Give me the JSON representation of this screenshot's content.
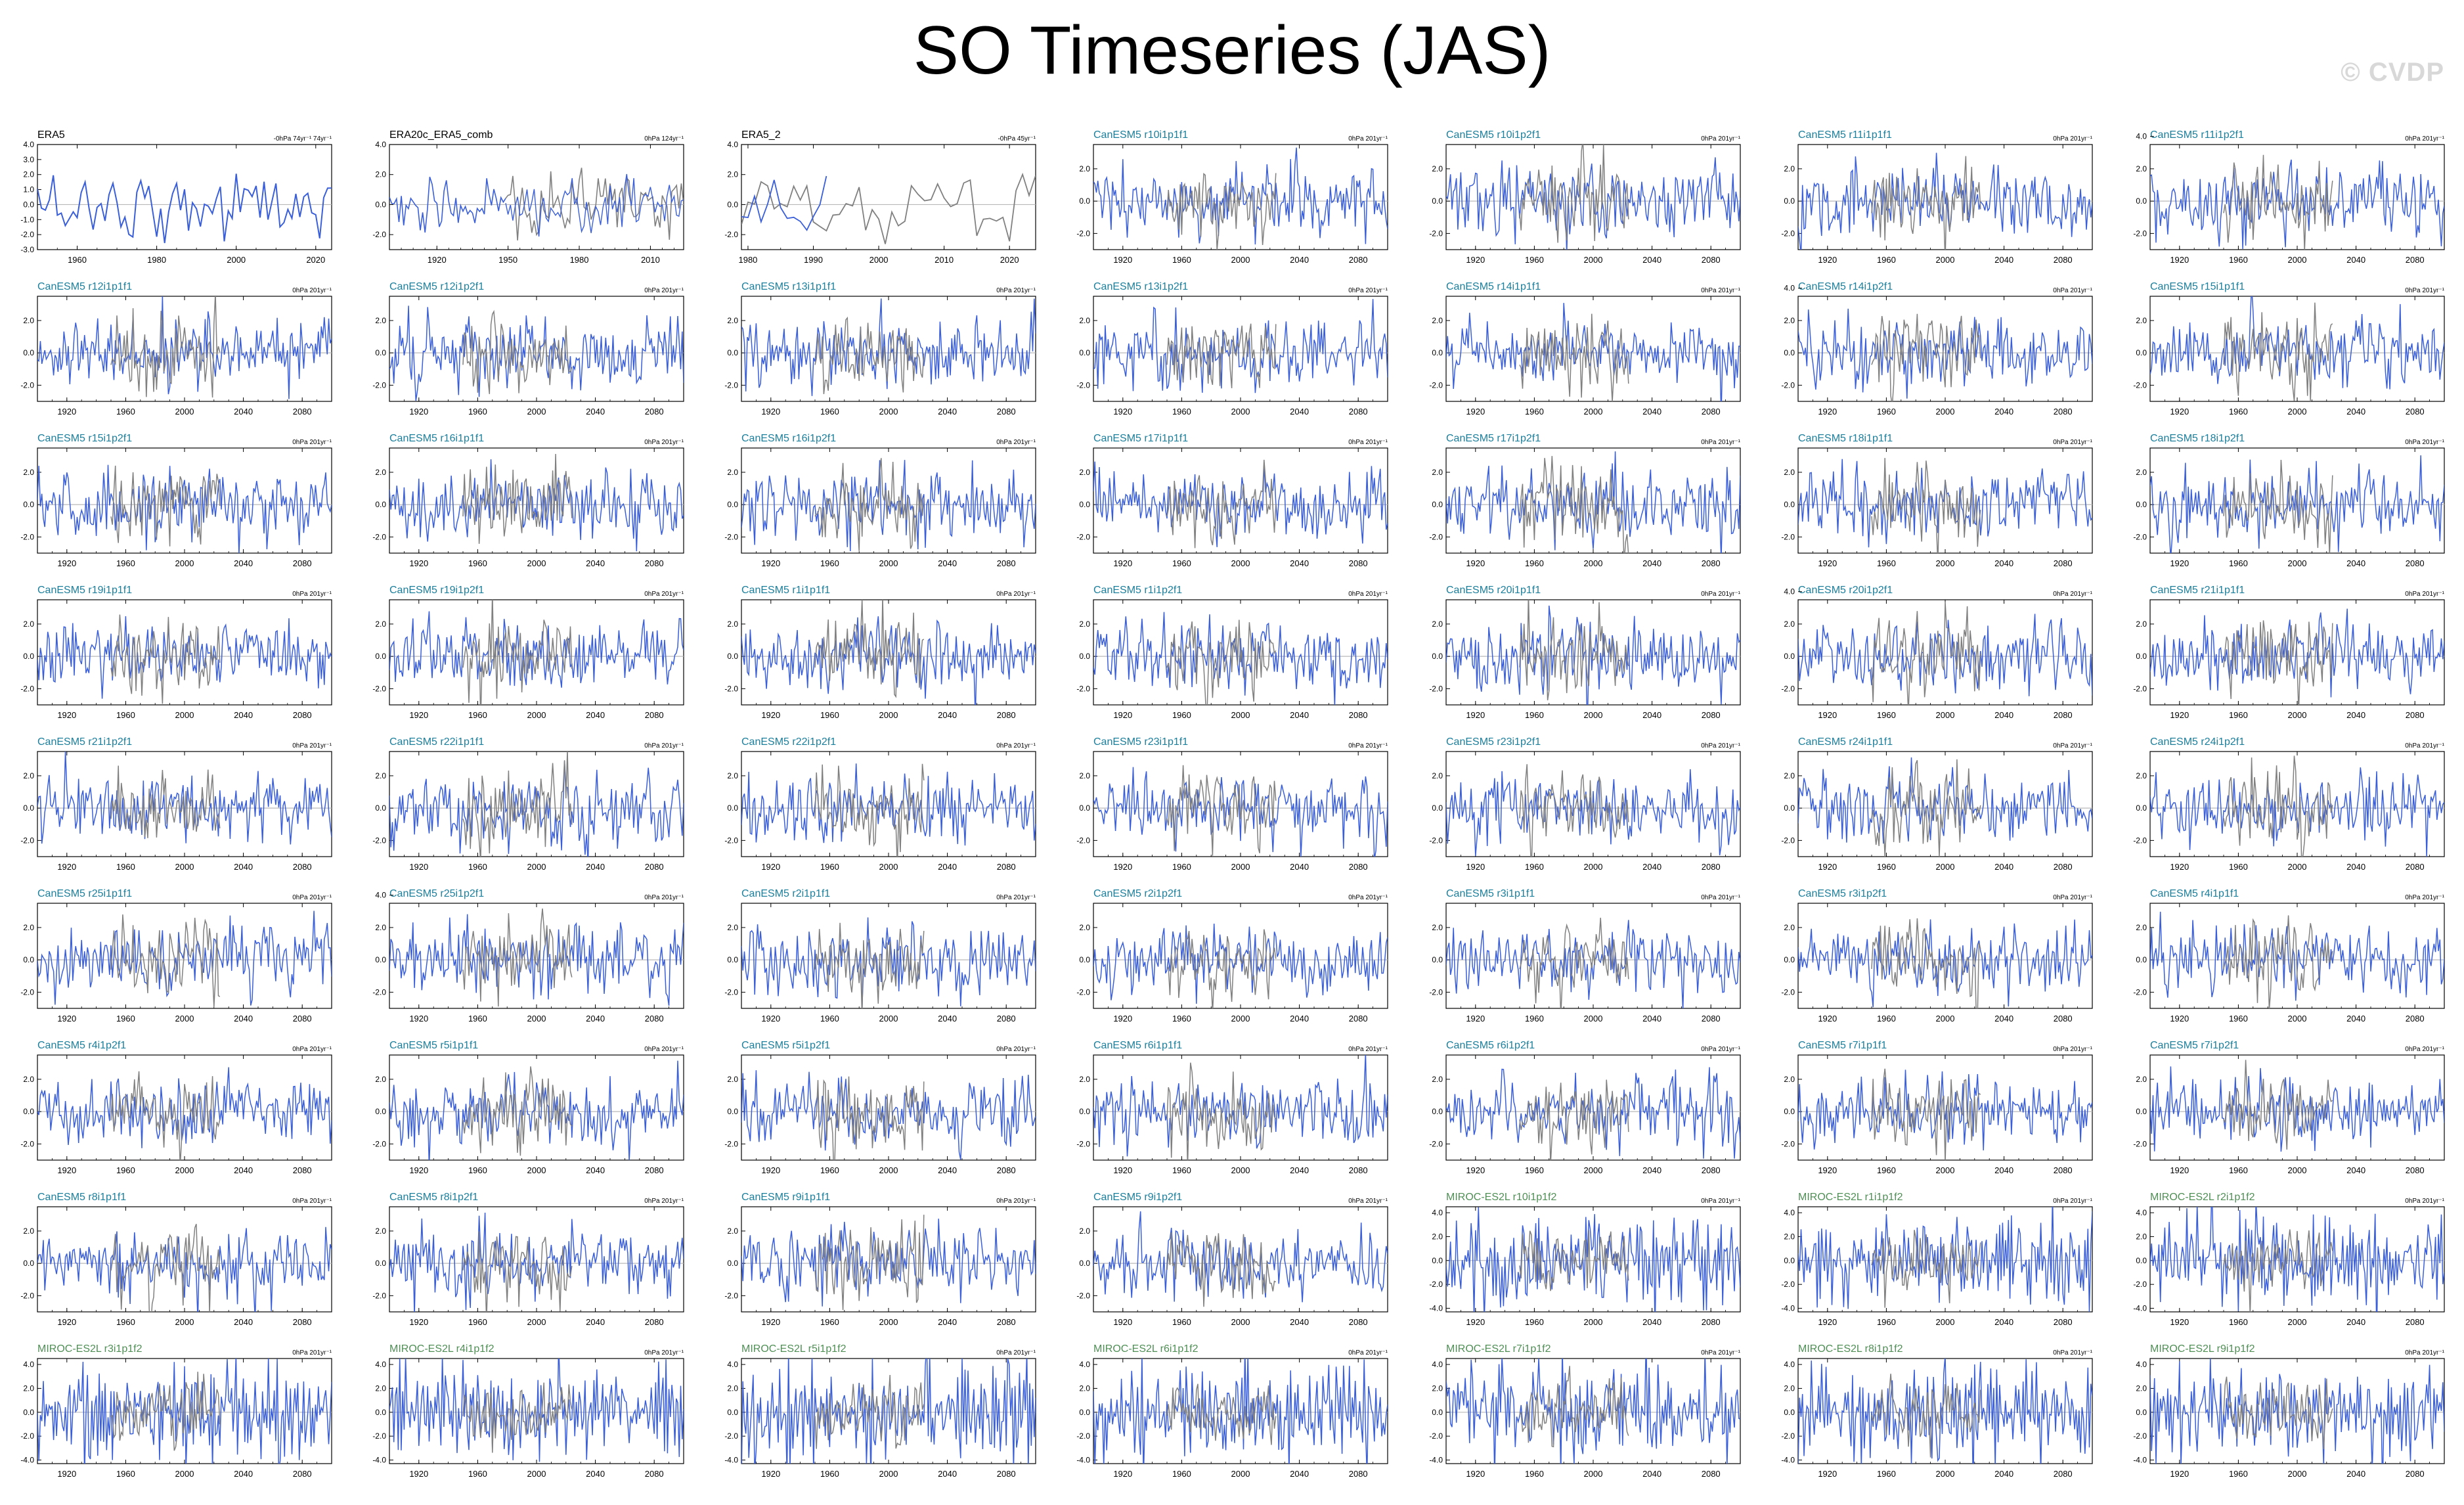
{
  "title": "SO Timeseries (JAS)",
  "watermark": "© CVDP",
  "colors": {
    "model_line": "#3a5fd8",
    "obs_line": "#808080",
    "zero_line": "#b8b8b8",
    "label_canesm": "#1b7f9c",
    "label_miroc": "#4f8f55",
    "label_obs": "#000000"
  },
  "chart_data": {
    "type": "line",
    "layout": "small-multiples",
    "rows": 9,
    "cols": 7,
    "panels": [
      {
        "label": "ERA5",
        "right": "-0hPa 74yr⁻¹ 74yr⁻¹",
        "xlim": [
          1950,
          2024
        ],
        "ticks_x": [
          1960,
          1980,
          2000,
          2020
        ],
        "ylim": [
          -3,
          4
        ],
        "ticks_y": [
          "4.0",
          "3.0",
          "2.0",
          "1.0",
          "0.0",
          "-1.0",
          "-2.0",
          "-3.0"
        ],
        "kind": "obs"
      },
      {
        "label": "ERA20c_ERA5_comb",
        "right": "0hPa 124yr⁻¹",
        "xlim": [
          1900,
          2024
        ],
        "ticks_x": [
          1920,
          1950,
          1980,
          2010
        ],
        "ylim": [
          -3,
          4
        ],
        "ticks_y": [
          "4.0",
          "2.0",
          "0.0",
          "-2.0"
        ],
        "kind": "obs"
      },
      {
        "label": "ERA5_2",
        "right": "-0hPa 45yr⁻¹",
        "xlim": [
          1979,
          2024
        ],
        "ticks_x": [
          1980,
          1990,
          2000,
          2010,
          2020
        ],
        "ylim": [
          -3,
          4
        ],
        "ticks_y": [
          "4.0",
          "2.0",
          "0.0",
          "-2.0"
        ],
        "kind": "obs"
      },
      {
        "label": "CanESM5 r10i1p1f1",
        "right": "0hPa 201yr⁻¹"
      },
      {
        "label": "CanESM5 r10i1p2f1",
        "right": "0hPa 201yr⁻¹"
      },
      {
        "label": "CanESM5 r11i1p1f1",
        "right": "0hPa 201yr⁻¹"
      },
      {
        "label": "CanESM5 r11i1p2f1",
        "right": "0hPa 201yr⁻¹",
        "ticks_y": [
          "4.0",
          "2.0",
          "0.0",
          "-2.0"
        ]
      },
      {
        "label": "CanESM5 r12i1p1f1",
        "right": "0hPa 201yr⁻¹"
      },
      {
        "label": "CanESM5 r12i1p2f1",
        "right": "0hPa 201yr⁻¹"
      },
      {
        "label": "CanESM5 r13i1p1f1",
        "right": "0hPa 201yr⁻¹"
      },
      {
        "label": "CanESM5 r13i1p2f1",
        "right": "0hPa 201yr⁻¹"
      },
      {
        "label": "CanESM5 r14i1p1f1",
        "right": "0hPa 201yr⁻¹"
      },
      {
        "label": "CanESM5 r14i1p2f1",
        "right": "0hPa 201yr⁻¹",
        "ticks_y": [
          "4.0",
          "2.0",
          "0.0",
          "-2.0"
        ]
      },
      {
        "label": "CanESM5 r15i1p1f1",
        "right": "0hPa 201yr⁻¹"
      },
      {
        "label": "CanESM5 r15i1p2f1",
        "right": "0hPa 201yr⁻¹"
      },
      {
        "label": "CanESM5 r16i1p1f1",
        "right": "0hPa 201yr⁻¹"
      },
      {
        "label": "CanESM5 r16i1p2f1",
        "right": "0hPa 201yr⁻¹"
      },
      {
        "label": "CanESM5 r17i1p1f1",
        "right": "0hPa 201yr⁻¹"
      },
      {
        "label": "CanESM5 r17i1p2f1",
        "right": "0hPa 201yr⁻¹"
      },
      {
        "label": "CanESM5 r18i1p1f1",
        "right": "0hPa 201yr⁻¹"
      },
      {
        "label": "CanESM5 r18i1p2f1",
        "right": "0hPa 201yr⁻¹"
      },
      {
        "label": "CanESM5 r19i1p1f1",
        "right": "0hPa 201yr⁻¹"
      },
      {
        "label": "CanESM5 r19i1p2f1",
        "right": "0hPa 201yr⁻¹"
      },
      {
        "label": "CanESM5 r1i1p1f1",
        "right": "0hPa 201yr⁻¹"
      },
      {
        "label": "CanESM5 r1i1p2f1",
        "right": "0hPa 201yr⁻¹"
      },
      {
        "label": "CanESM5 r20i1p1f1",
        "right": "0hPa 201yr⁻¹"
      },
      {
        "label": "CanESM5 r20i1p2f1",
        "right": "0hPa 201yr⁻¹",
        "ticks_y": [
          "4.0",
          "2.0",
          "0.0",
          "-2.0"
        ]
      },
      {
        "label": "CanESM5 r21i1p1f1",
        "right": "0hPa 201yr⁻¹"
      },
      {
        "label": "CanESM5 r21i1p2f1",
        "right": "0hPa 201yr⁻¹"
      },
      {
        "label": "CanESM5 r22i1p1f1",
        "right": "0hPa 201yr⁻¹"
      },
      {
        "label": "CanESM5 r22i1p2f1",
        "right": "0hPa 201yr⁻¹"
      },
      {
        "label": "CanESM5 r23i1p1f1",
        "right": "0hPa 201yr⁻¹"
      },
      {
        "label": "CanESM5 r23i1p2f1",
        "right": "0hPa 201yr⁻¹"
      },
      {
        "label": "CanESM5 r24i1p1f1",
        "right": "0hPa 201yr⁻¹"
      },
      {
        "label": "CanESM5 r24i1p2f1",
        "right": "0hPa 201yr⁻¹"
      },
      {
        "label": "CanESM5 r25i1p1f1",
        "right": "0hPa 201yr⁻¹"
      },
      {
        "label": "CanESM5 r25i1p2f1",
        "right": "0hPa 201yr⁻¹",
        "ticks_y": [
          "4.0",
          "2.0",
          "0.0",
          "-2.0"
        ]
      },
      {
        "label": "CanESM5 r2i1p1f1",
        "right": "0hPa 201yr⁻¹"
      },
      {
        "label": "CanESM5 r2i1p2f1",
        "right": "0hPa 201yr⁻¹"
      },
      {
        "label": "CanESM5 r3i1p1f1",
        "right": "0hPa 201yr⁻¹"
      },
      {
        "label": "CanESM5 r3i1p2f1",
        "right": "0hPa 201yr⁻¹"
      },
      {
        "label": "CanESM5 r4i1p1f1",
        "right": "0hPa 201yr⁻¹"
      },
      {
        "label": "CanESM5 r4i1p2f1",
        "right": "0hPa 201yr⁻¹"
      },
      {
        "label": "CanESM5 r5i1p1f1",
        "right": "0hPa 201yr⁻¹"
      },
      {
        "label": "CanESM5 r5i1p2f1",
        "right": "0hPa 201yr⁻¹"
      },
      {
        "label": "CanESM5 r6i1p1f1",
        "right": "0hPa 201yr⁻¹"
      },
      {
        "label": "CanESM5 r6i1p2f1",
        "right": "0hPa 201yr⁻¹"
      },
      {
        "label": "CanESM5 r7i1p1f1",
        "right": "0hPa 201yr⁻¹"
      },
      {
        "label": "CanESM5 r7i1p2f1",
        "right": "0hPa 201yr⁻¹"
      },
      {
        "label": "CanESM5 r8i1p1f1",
        "right": "0hPa 201yr⁻¹"
      },
      {
        "label": "CanESM5 r8i1p2f1",
        "right": "0hPa 201yr⁻¹"
      },
      {
        "label": "CanESM5 r9i1p1f1",
        "right": "0hPa 201yr⁻¹"
      },
      {
        "label": "CanESM5 r9i1p2f1",
        "right": "0hPa 201yr⁻¹"
      },
      {
        "label": "MIROC-ES2L r10i1p1f2",
        "right": "0hPa 201yr⁻¹",
        "ticks_y": [
          "4.0",
          "2.0",
          "0.0",
          "-2.0",
          "-4.0"
        ],
        "kind": "miroc"
      },
      {
        "label": "MIROC-ES2L r1i1p1f2",
        "right": "0hPa 201yr⁻¹",
        "ticks_y": [
          "4.0",
          "2.0",
          "0.0",
          "-2.0",
          "-4.0"
        ],
        "kind": "miroc"
      },
      {
        "label": "MIROC-ES2L r2i1p1f2",
        "right": "0hPa 201yr⁻¹",
        "ticks_y": [
          "4.0",
          "2.0",
          "0.0",
          "-2.0",
          "-4.0"
        ],
        "kind": "miroc"
      },
      {
        "label": "MIROC-ES2L r3i1p1f2",
        "right": "0hPa 201yr⁻¹",
        "ticks_y": [
          "4.0",
          "2.0",
          "0.0",
          "-2.0",
          "-4.0"
        ],
        "kind": "miroc"
      },
      {
        "label": "MIROC-ES2L r4i1p1f2",
        "right": "0hPa 201yr⁻¹",
        "ticks_y": [
          "4.0",
          "2.0",
          "0.0",
          "-2.0",
          "-4.0"
        ],
        "kind": "miroc"
      },
      {
        "label": "MIROC-ES2L r5i1p1f2",
        "right": "0hPa 201yr⁻¹",
        "ticks_y": [
          "4.0",
          "2.0",
          "0.0",
          "-2.0",
          "-4.0"
        ],
        "kind": "miroc"
      },
      {
        "label": "MIROC-ES2L r6i1p1f2",
        "right": "0hPa 201yr⁻¹",
        "ticks_y": [
          "4.0",
          "2.0",
          "0.0",
          "-2.0",
          "-4.0"
        ],
        "kind": "miroc"
      },
      {
        "label": "MIROC-ES2L r7i1p1f2",
        "right": "0hPa 201yr⁻¹",
        "ticks_y": [
          "4.0",
          "2.0",
          "0.0",
          "-2.0",
          "-4.0"
        ],
        "kind": "miroc"
      },
      {
        "label": "MIROC-ES2L r8i1p1f2",
        "right": "0hPa 201yr⁻¹",
        "ticks_y": [
          "4.0",
          "2.0",
          "0.0",
          "-2.0",
          "-4.0"
        ],
        "kind": "miroc"
      },
      {
        "label": "MIROC-ES2L r9i1p1f2",
        "right": "0hPa 201yr⁻¹",
        "ticks_y": [
          "4.0",
          "2.0",
          "0.0",
          "-2.0",
          "-4.0"
        ],
        "kind": "miroc"
      }
    ],
    "model_defaults": {
      "xlim": [
        1900,
        2100
      ],
      "ticks_x": [
        1920,
        1960,
        2000,
        2040,
        2080
      ],
      "ylim": [
        -3,
        3.5
      ],
      "ticks_y": [
        "2.0",
        "0.0",
        "-2.0"
      ]
    },
    "miroc_ylim": [
      -4.3,
      4.5
    ],
    "obs_overlay_span": [
      1950,
      2024
    ]
  }
}
